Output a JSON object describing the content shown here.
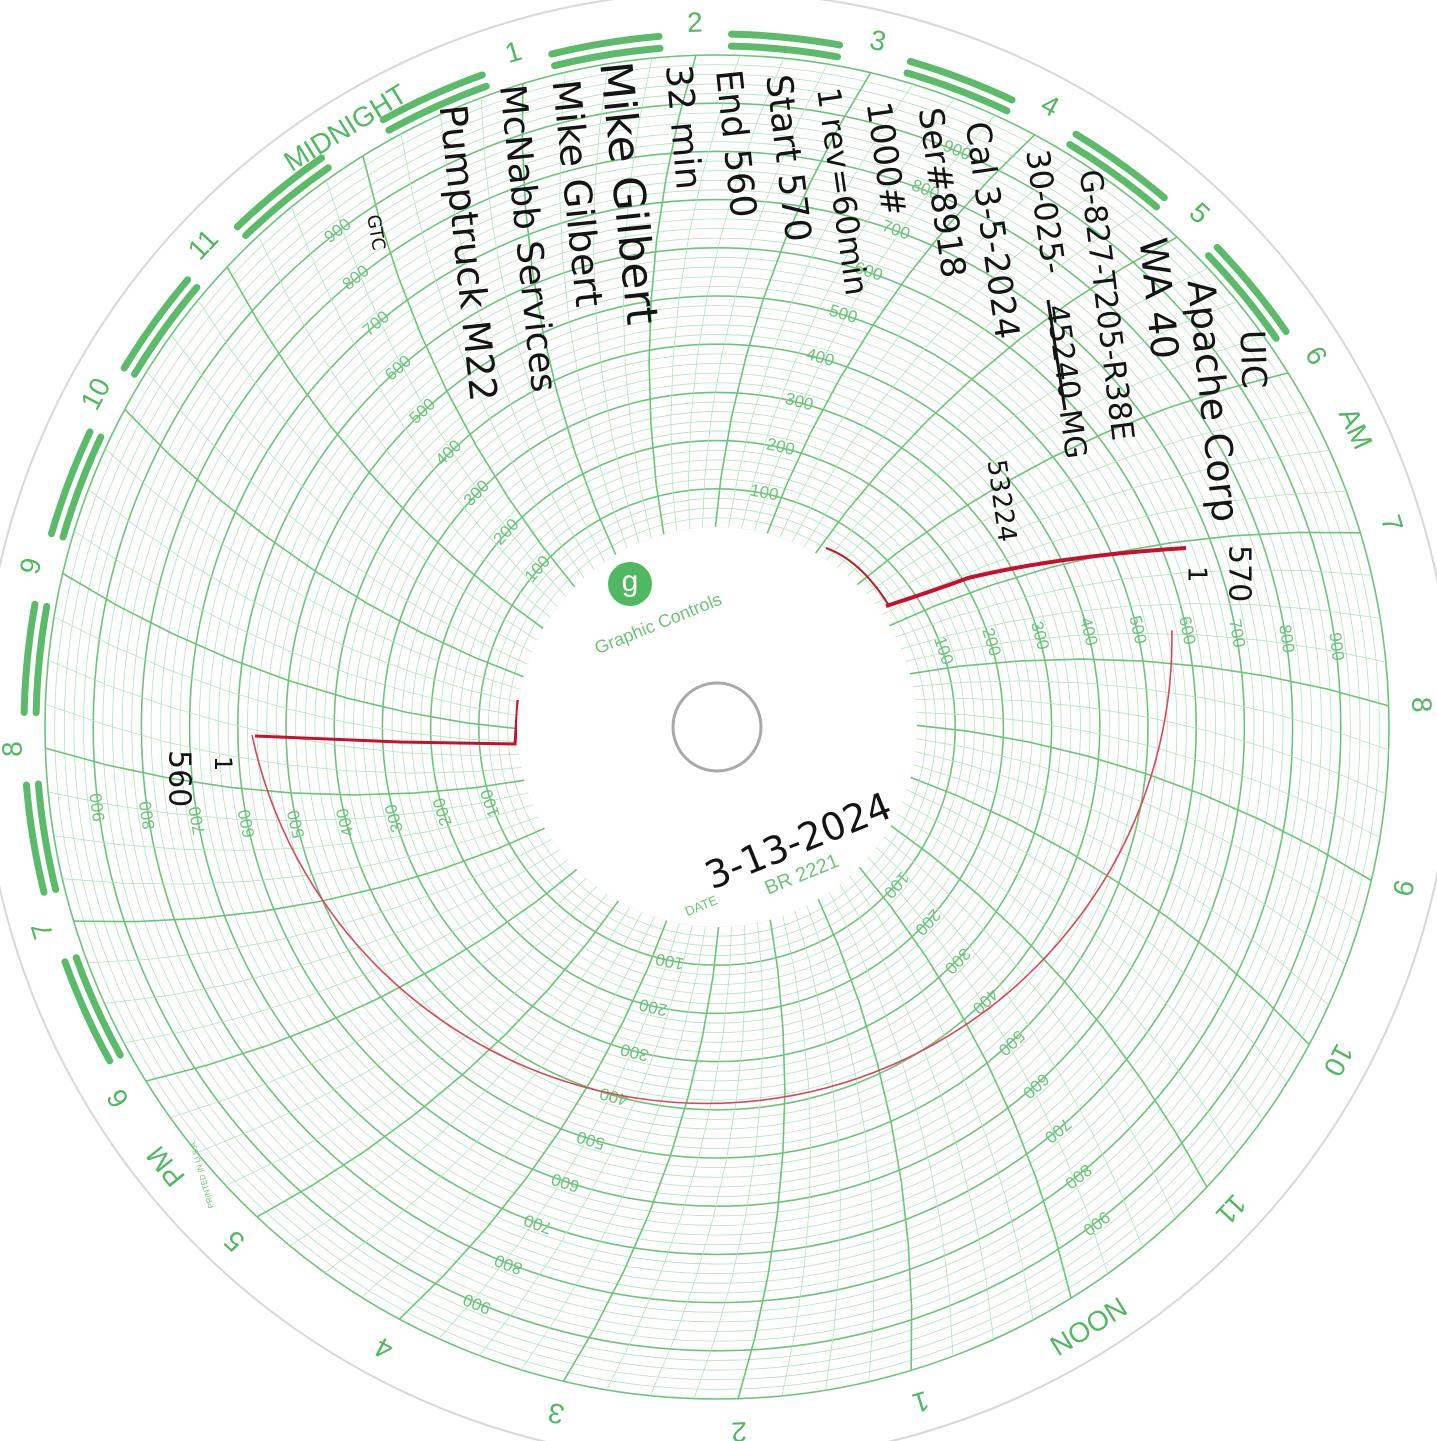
{
  "hours": [
    "MIDNIGHT",
    "1",
    "2",
    "3",
    "4",
    "5",
    "6",
    "7",
    "8",
    "9",
    "10",
    "11",
    "NOON",
    "1",
    "2",
    "3",
    "4",
    "5",
    "6",
    "7",
    "8",
    "9",
    "10",
    "11"
  ],
  "am_label": "AM",
  "pm_label": "PM",
  "scale": [
    100,
    200,
    300,
    400,
    500,
    600,
    700,
    800,
    900
  ],
  "brand": {
    "logo": "g",
    "name": "Graphic Controls"
  },
  "date_label": "DATE",
  "chart_number": "BR 2221",
  "printed_in": "PRINTED IN U.S.A.",
  "date": "3-13-2024",
  "notes": [
    "UIC",
    "Apache Corp",
    "WA 40",
    "G-827-T205-R38E",
    "30-025-",
    "45240",
    "MG",
    "53224",
    "Cal 3-5-2024",
    "Ser#8918",
    "1000#",
    "1 rev=60min",
    "Start 570",
    "End 560",
    "32 min",
    "Mike Gilbert",
    "Mike Gilbert",
    "McNabb Services",
    "Pumptruck M22",
    "GTC"
  ],
  "start_marks": [
    "570",
    "1"
  ],
  "end_marks": [
    "560",
    "1"
  ]
}
